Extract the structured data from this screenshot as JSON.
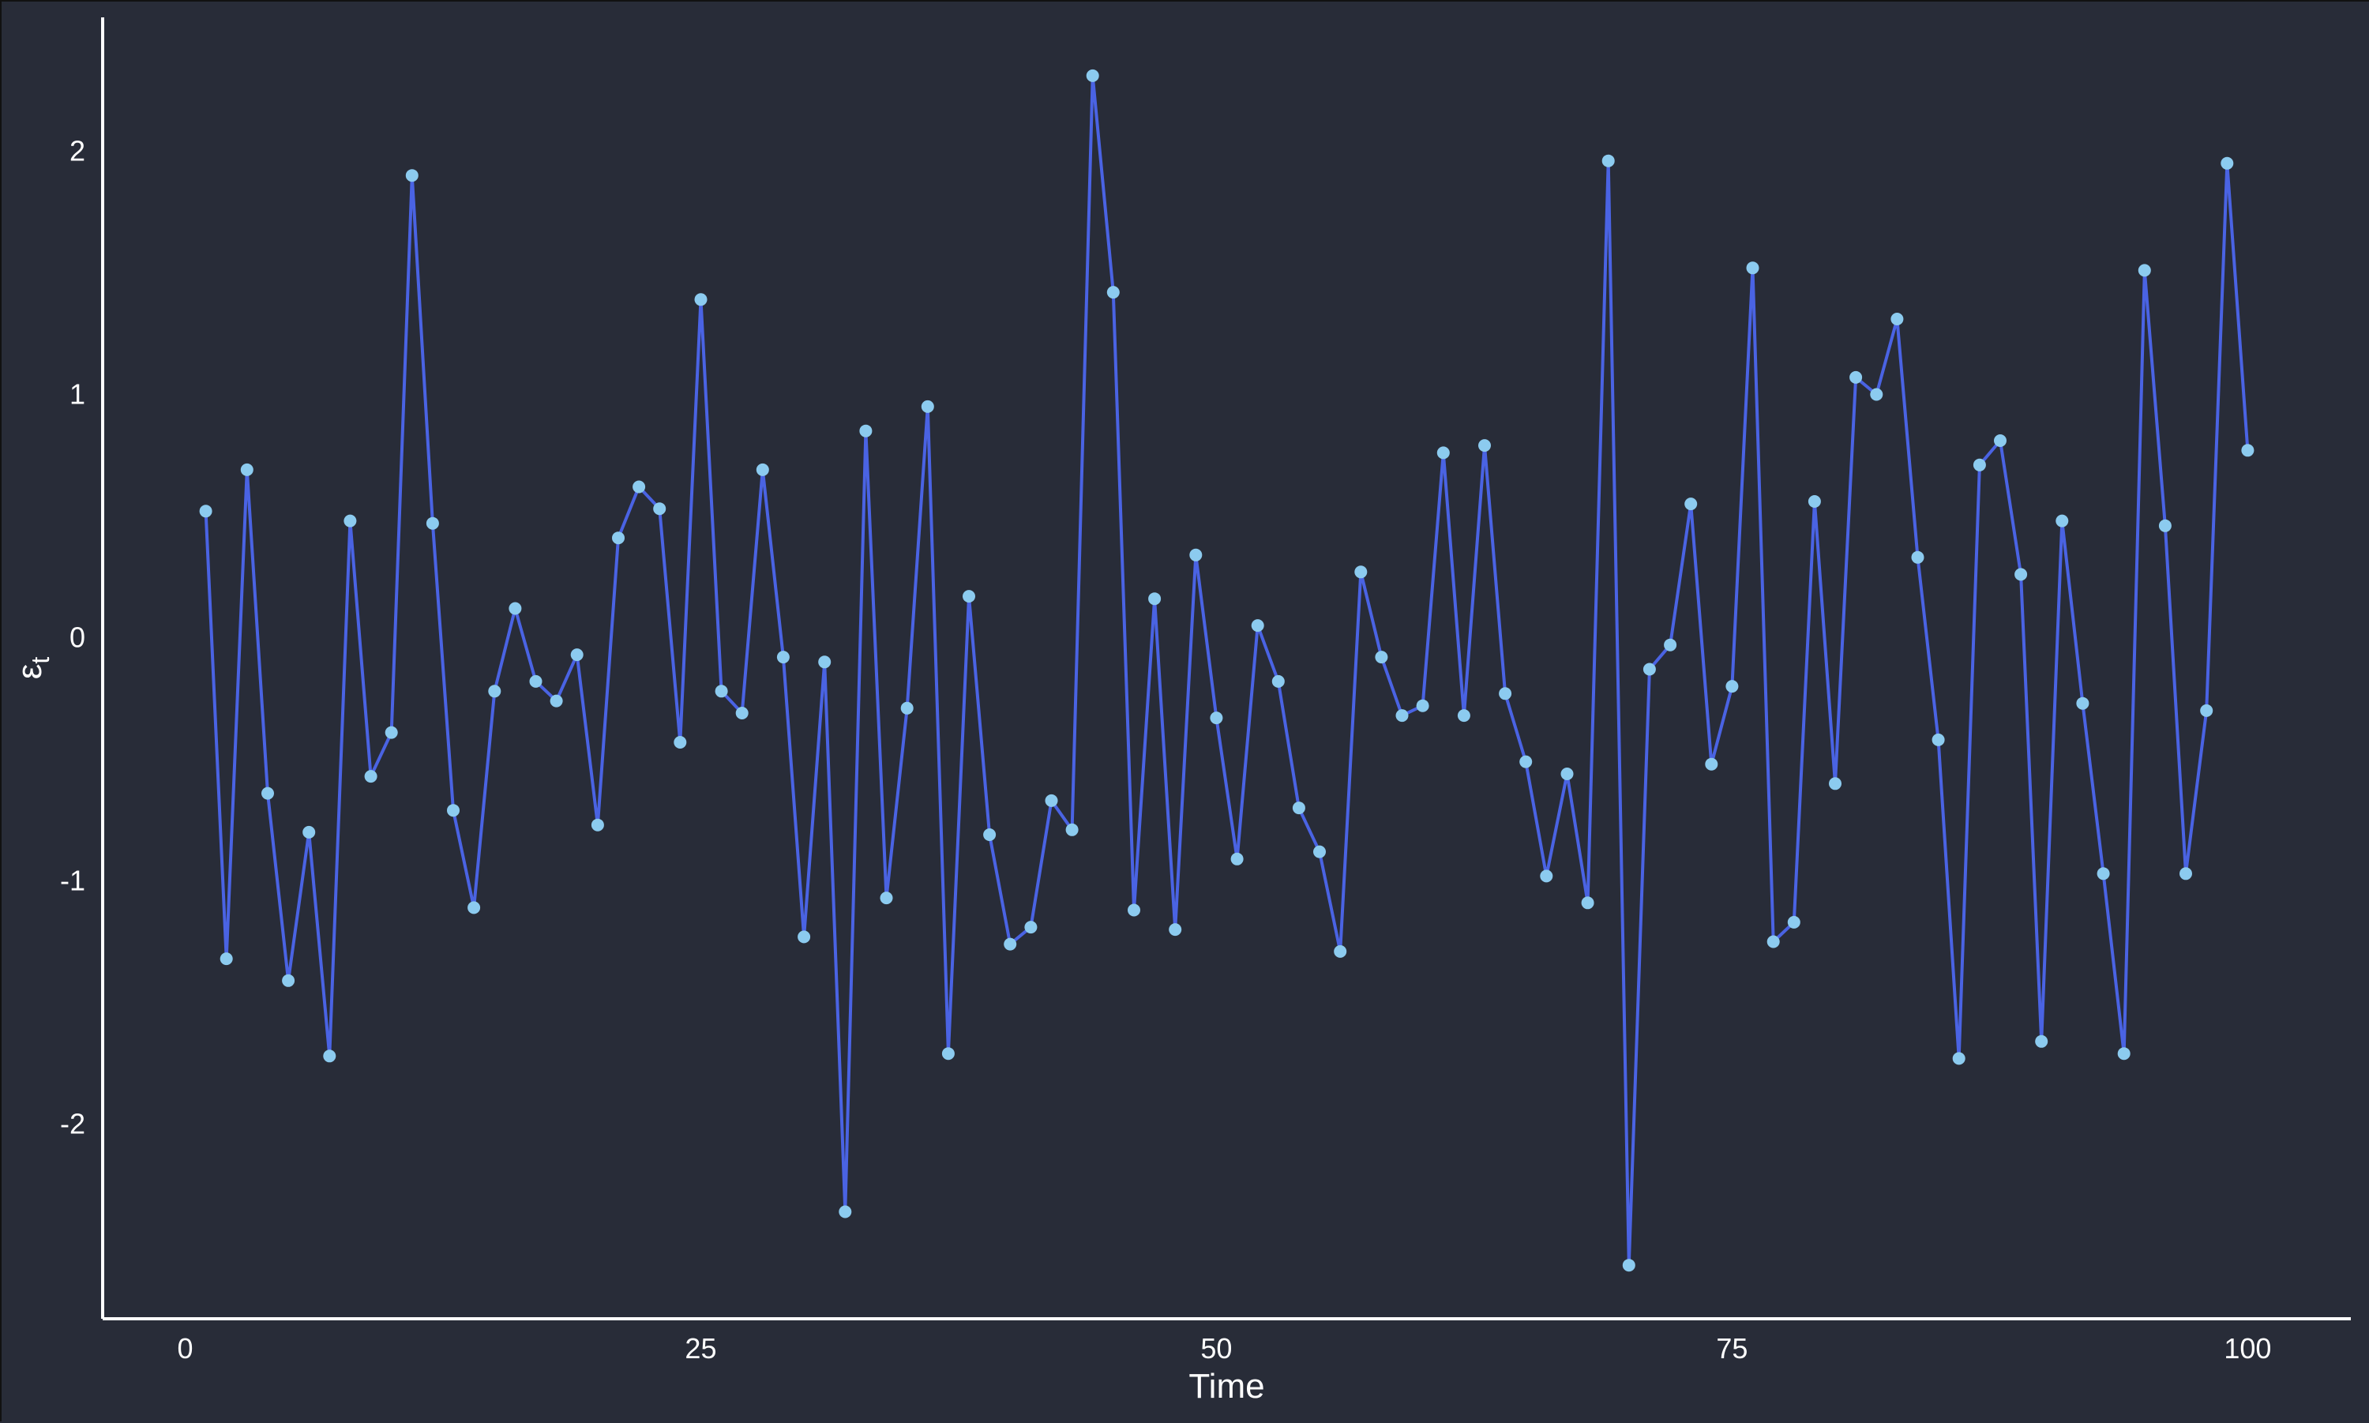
{
  "chart_data": {
    "type": "line",
    "title": "",
    "xlabel": "Time",
    "ylabel_base": "ε",
    "ylabel_sub": "t",
    "xlim": [
      -4,
      105
    ],
    "ylim": [
      -2.8,
      2.55
    ],
    "x_ticks": [
      0,
      25,
      50,
      75,
      100
    ],
    "y_ticks": [
      -2,
      -1,
      0,
      1,
      2
    ],
    "grid": false,
    "legend": "none",
    "background_color": "#282c38",
    "line_color": "#4a63e3",
    "point_color": "#8ccbef",
    "x": [
      1,
      2,
      3,
      4,
      5,
      6,
      7,
      8,
      9,
      10,
      11,
      12,
      13,
      14,
      15,
      16,
      17,
      18,
      19,
      20,
      21,
      22,
      23,
      24,
      25,
      26,
      27,
      28,
      29,
      30,
      31,
      32,
      33,
      34,
      35,
      36,
      37,
      38,
      39,
      40,
      41,
      42,
      43,
      44,
      45,
      46,
      47,
      48,
      49,
      50,
      51,
      52,
      53,
      54,
      55,
      56,
      57,
      58,
      59,
      60,
      61,
      62,
      63,
      64,
      65,
      66,
      67,
      68,
      69,
      70,
      71,
      72,
      73,
      74,
      75,
      76,
      77,
      78,
      79,
      80,
      81,
      82,
      83,
      84,
      85,
      86,
      87,
      88,
      89,
      90,
      91,
      92,
      93,
      94,
      95,
      96,
      97,
      98,
      99,
      100
    ],
    "y": [
      0.52,
      -1.32,
      0.69,
      -0.64,
      -1.41,
      -0.8,
      -1.72,
      0.48,
      -0.57,
      -0.39,
      1.9,
      0.47,
      -0.71,
      -1.11,
      -0.22,
      0.12,
      -0.18,
      -0.26,
      -0.07,
      -0.77,
      0.41,
      0.62,
      0.53,
      -0.43,
      1.39,
      -0.22,
      -0.31,
      0.69,
      -0.08,
      -1.23,
      -0.1,
      -2.36,
      0.85,
      -1.07,
      -0.29,
      0.95,
      -1.71,
      0.17,
      -0.81,
      -1.26,
      -1.19,
      -0.67,
      -0.79,
      2.31,
      1.42,
      -1.12,
      0.16,
      -1.2,
      0.34,
      -0.33,
      -0.91,
      0.05,
      -0.18,
      -0.7,
      -0.88,
      -1.29,
      0.27,
      -0.08,
      -0.32,
      -0.28,
      0.76,
      -0.32,
      0.79,
      -0.23,
      -0.51,
      -0.98,
      -0.56,
      -1.09,
      1.96,
      -2.58,
      -0.13,
      -0.03,
      0.55,
      -0.52,
      -0.2,
      1.52,
      -1.25,
      -1.17,
      0.56,
      -0.6,
      1.07,
      1.0,
      1.31,
      0.33,
      -0.42,
      -1.73,
      0.71,
      0.81,
      0.26,
      -1.66,
      0.48,
      -0.27,
      -0.97,
      -1.71,
      1.51,
      0.46,
      -0.97,
      -0.3,
      1.95,
      0.77
    ]
  }
}
